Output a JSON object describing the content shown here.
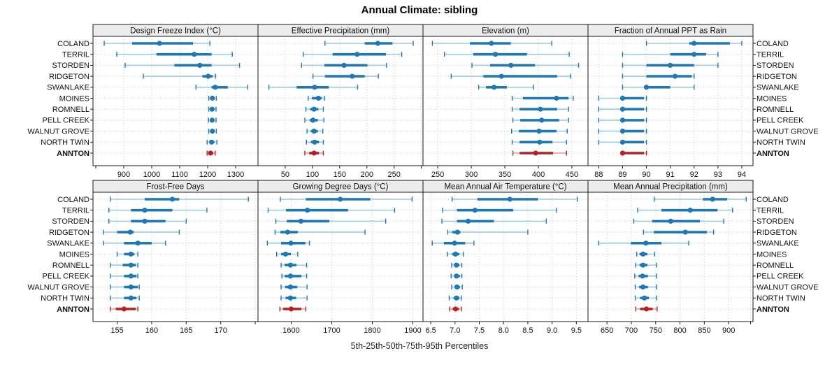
{
  "page_title": "Annual Climate: sibling",
  "caption": "5th-25th-50th-75th-95th Percentiles",
  "colors": {
    "blue": "#1f77b4",
    "blue_light": "#9ec9e2",
    "red": "#b22222",
    "red_light": "#dd9a96",
    "grid": "#c9c9c9",
    "strip_bg": "#ececec",
    "border": "#1a1a1a",
    "text": "#111111"
  },
  "chart_data": {
    "type": "dotplot-percentiles",
    "title": "Annual Climate: sibling",
    "xlabel": "5th-25th-50th-75th-95th Percentiles",
    "percentile_labels": [
      "5th",
      "25th",
      "50th",
      "75th",
      "95th"
    ],
    "layout": {
      "rows": 2,
      "cols": 4,
      "grid": "dotted",
      "legend": "none"
    },
    "highlight": "ANNTON",
    "stations": [
      "COLAND",
      "TERRIL",
      "STORDEN",
      "RIDGETON",
      "SWANLAKE",
      "MOINES",
      "ROMNELL",
      "PELL CREEK",
      "WALNUT GROVE",
      "NORTH TWIN",
      "ANNTON"
    ],
    "panels": [
      {
        "title": "Design Freeze Index (°C)",
        "xlim": [
          790,
          1380
        ],
        "ticks": [
          900,
          1000,
          1100,
          1200,
          1300
        ],
        "minor_ticks": [
          800
        ],
        "decimals": 0,
        "values": [
          [
            830,
            930,
            1028,
            1148,
            1208
          ],
          [
            875,
            1017,
            1152,
            1214,
            1288
          ],
          [
            905,
            1081,
            1172,
            1214,
            1314
          ],
          [
            970,
            1181,
            1202,
            1218,
            1228
          ],
          [
            1158,
            1214,
            1227,
            1272,
            1343
          ],
          [
            1204,
            1211,
            1217,
            1224,
            1231
          ],
          [
            1204,
            1210,
            1216,
            1223,
            1230
          ],
          [
            1203,
            1210,
            1216,
            1223,
            1230
          ],
          [
            1204,
            1211,
            1217,
            1224,
            1231
          ],
          [
            1198,
            1207,
            1214,
            1224,
            1233
          ],
          [
            1198,
            1205,
            1210,
            1220,
            1227
          ]
        ]
      },
      {
        "title": "Effective Precipitation (mm)",
        "xlim": [
          0,
          303
        ],
        "ticks": [
          50,
          100,
          150,
          200,
          250
        ],
        "minor_ticks": [
          300
        ],
        "decimals": 0,
        "values": [
          [
            123,
            196,
            220,
            247,
            285
          ],
          [
            83,
            137,
            182,
            235,
            264
          ],
          [
            80,
            122,
            158,
            201,
            236
          ],
          [
            101,
            123,
            173,
            196,
            221
          ],
          [
            20,
            71,
            104,
            130,
            183
          ],
          [
            92,
            99,
            111,
            117,
            122
          ],
          [
            88,
            96,
            103,
            111,
            120
          ],
          [
            86,
            95,
            101,
            110,
            121
          ],
          [
            90,
            97,
            103,
            110,
            119
          ],
          [
            89,
            97,
            104,
            112,
            120
          ],
          [
            86,
            94,
            103,
            112,
            120
          ]
        ]
      },
      {
        "title": "Elevation (m)",
        "xlim": [
          228,
          474
        ],
        "ticks": [
          250,
          300,
          350,
          400,
          450
        ],
        "minor_ticks": [],
        "decimals": 0,
        "values": [
          [
            242,
            298,
            330,
            359,
            420
          ],
          [
            260,
            303,
            336,
            383,
            446
          ],
          [
            301,
            328,
            359,
            395,
            460
          ],
          [
            270,
            318,
            345,
            428,
            448
          ],
          [
            311,
            322,
            334,
            353,
            393
          ],
          [
            361,
            377,
            427,
            445,
            452
          ],
          [
            361,
            372,
            403,
            428,
            445
          ],
          [
            362,
            373,
            405,
            431,
            445
          ],
          [
            360,
            371,
            401,
            427,
            443
          ],
          [
            361,
            372,
            402,
            421,
            442
          ],
          [
            362,
            372,
            396,
            422,
            442
          ]
        ]
      },
      {
        "title": "Fraction of Annual PPT as Rain",
        "xlim": [
          87.55,
          94.47
        ],
        "ticks": [
          88,
          89,
          90,
          91,
          92,
          93,
          94
        ],
        "minor_ticks": [],
        "decimals": 0,
        "values": [
          [
            90,
            91.8,
            92,
            93.5,
            94
          ],
          [
            89,
            91,
            92,
            92.5,
            93
          ],
          [
            89,
            90,
            91,
            92,
            93
          ],
          [
            89,
            90,
            91.2,
            91.9,
            92
          ],
          [
            89,
            89.9,
            90,
            91,
            92
          ],
          [
            88,
            88.9,
            89,
            89.9,
            90
          ],
          [
            88,
            89,
            89,
            89.9,
            90
          ],
          [
            88,
            89,
            89,
            89.9,
            90
          ],
          [
            88,
            89,
            89,
            89.9,
            90
          ],
          [
            88,
            89,
            89,
            89.9,
            90
          ],
          [
            89,
            89,
            89,
            89.9,
            90
          ]
        ]
      },
      {
        "title": "Frost-Free Days",
        "xlim": [
          151.5,
          175.4
        ],
        "ticks": [
          155,
          160,
          165,
          170
        ],
        "minor_ticks": [
          175
        ],
        "decimals": 0,
        "values": [
          [
            154,
            159,
            163,
            164,
            174
          ],
          [
            153.8,
            157,
            159,
            163,
            168
          ],
          [
            153.8,
            157,
            159,
            162,
            165
          ],
          [
            153,
            155,
            156.9,
            157.4,
            164
          ],
          [
            153,
            156,
            158,
            160,
            162
          ],
          [
            155,
            156,
            157,
            157.5,
            158
          ],
          [
            154,
            155.8,
            157,
            157.7,
            158
          ],
          [
            154,
            156,
            157,
            157.8,
            158
          ],
          [
            154,
            156,
            157,
            158,
            158.2
          ],
          [
            154,
            156,
            157,
            157.8,
            158.2
          ],
          [
            154,
            154.8,
            156,
            157.7,
            158
          ]
        ]
      },
      {
        "title": "Growing Degree Days (°C)",
        "xlim": [
          1518,
          1925
        ],
        "ticks": [
          1600,
          1700,
          1800,
          1900
        ],
        "minor_ticks": [],
        "decimals": 0,
        "values": [
          [
            1573,
            1636,
            1721,
            1795,
            1898
          ],
          [
            1543,
            1587,
            1640,
            1740,
            1855
          ],
          [
            1562,
            1589,
            1624,
            1694,
            1833
          ],
          [
            1560,
            1573,
            1591,
            1616,
            1782
          ],
          [
            1541,
            1575,
            1599,
            1635,
            1645
          ],
          [
            1564,
            1575,
            1586,
            1599,
            1616
          ],
          [
            1575,
            1584,
            1598,
            1613,
            1638
          ],
          [
            1577,
            1584,
            1598,
            1625,
            1638
          ],
          [
            1575,
            1585,
            1598,
            1615,
            1639
          ],
          [
            1575,
            1586,
            1598,
            1612,
            1639
          ],
          [
            1572,
            1580,
            1600,
            1625,
            1636
          ]
        ]
      },
      {
        "title": "Mean Annual Air Temperature (°C)",
        "xlim": [
          6.34,
          9.74
        ],
        "ticks": [
          6.5,
          7.0,
          7.5,
          8.0,
          8.5,
          9.0,
          9.5
        ],
        "minor_ticks": [],
        "decimals": 1,
        "values": [
          [
            6.94,
            7.46,
            8.13,
            8.71,
            9.52
          ],
          [
            6.74,
            7.04,
            7.41,
            8.2,
            9.09
          ],
          [
            6.73,
            7.04,
            7.27,
            7.8,
            8.88
          ],
          [
            6.85,
            6.94,
            7.05,
            7.11,
            8.5
          ],
          [
            6.53,
            6.77,
            6.99,
            7.21,
            7.39
          ],
          [
            6.84,
            6.94,
            7.01,
            7.09,
            7.17
          ],
          [
            6.93,
            6.98,
            7.03,
            7.09,
            7.14
          ],
          [
            6.92,
            6.99,
            7.03,
            7.1,
            7.14
          ],
          [
            6.93,
            6.99,
            7.04,
            7.1,
            7.15
          ],
          [
            6.88,
            6.97,
            7.03,
            7.09,
            7.13
          ],
          [
            6.89,
            6.95,
            7.01,
            7.08,
            7.13
          ]
        ]
      },
      {
        "title": "Mean Annual Precipitation (mm)",
        "xlim": [
          611,
          950
        ],
        "ticks": [
          650,
          700,
          750,
          800,
          850,
          900
        ],
        "minor_ticks": [
          945
        ],
        "decimals": 0,
        "values": [
          [
            747,
            847,
            867,
            897,
            936
          ],
          [
            713,
            762,
            821,
            877,
            908
          ],
          [
            705,
            743,
            781,
            841,
            890
          ],
          [
            725,
            746,
            811,
            855,
            869
          ],
          [
            633,
            699,
            730,
            762,
            818
          ],
          [
            711,
            717,
            724,
            733,
            748
          ],
          [
            709,
            717,
            724,
            733,
            752
          ],
          [
            707,
            715,
            723,
            734,
            752
          ],
          [
            708,
            716,
            724,
            734,
            752
          ],
          [
            708,
            718,
            727,
            736,
            752
          ],
          [
            709,
            718,
            731,
            744,
            753
          ]
        ]
      }
    ]
  }
}
